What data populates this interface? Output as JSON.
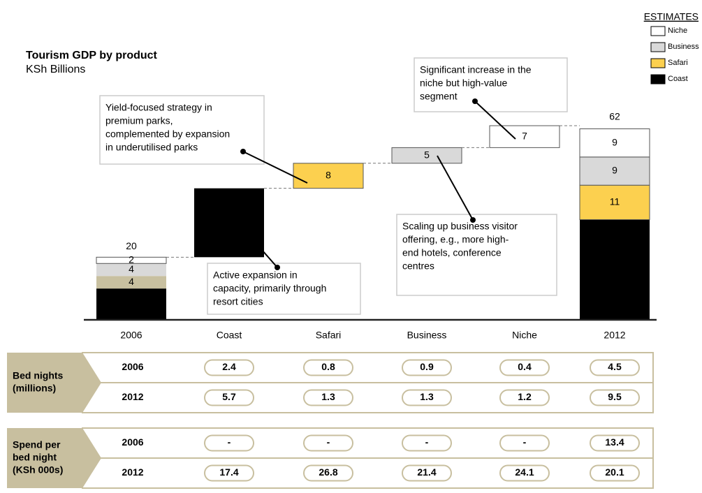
{
  "chart_data": {
    "type": "waterfall",
    "title": "Tourism GDP by product",
    "subtitle": "KSh Billions",
    "legend_title": "ESTIMATES",
    "categories": [
      "2006",
      "Coast",
      "Safari",
      "Business",
      "Niche",
      "2012"
    ],
    "series": [
      {
        "name": "Coast",
        "color": "#000000",
        "start": 10,
        "change": 22,
        "end": 32
      },
      {
        "name": "Safari",
        "color": "#fcd04f",
        "start": 4,
        "change": 8,
        "end": 11
      },
      {
        "name": "Business",
        "color": "#d9d9d9",
        "start": 4,
        "change": 5,
        "end": 9
      },
      {
        "name": "Niche",
        "color": "#ffffff",
        "start": 2,
        "change": 7,
        "end": 9
      }
    ],
    "start_colors": [
      "#000000",
      "#c8c0a0",
      "#d9d9d9",
      "#ffffff"
    ],
    "start_total": 20,
    "end_total": 62,
    "annotations": [
      {
        "lines": [
          "Yield-focused strategy in",
          "premium parks,",
          "complemented by expansion",
          "in underutilised parks"
        ]
      },
      {
        "lines": [
          "Significant increase in the",
          "niche but high-value",
          "segment"
        ]
      },
      {
        "lines": [
          "Scaling up business visitor",
          "offering, e.g., more high-",
          "end hotels, conference",
          "centres"
        ]
      },
      {
        "lines": [
          "Active expansion in",
          "capacity, primarily through",
          "resort cities"
        ]
      }
    ]
  },
  "table": {
    "groups": [
      {
        "label": [
          "Bed nights",
          "(millions)"
        ],
        "rows": [
          {
            "year": "2006",
            "values": [
              2.4,
              0.8,
              0.9,
              0.4,
              4.5
            ]
          },
          {
            "year": "2012",
            "values": [
              5.7,
              1.3,
              1.3,
              1.2,
              9.5
            ]
          }
        ]
      },
      {
        "label": [
          "Spend per",
          "bed night",
          "(KSh 000s)"
        ],
        "rows": [
          {
            "year": "2006",
            "values": [
              "-",
              "-",
              "-",
              "-",
              13.4
            ]
          },
          {
            "year": "2012",
            "values": [
              17.4,
              26.8,
              21.4,
              24.1,
              20.1
            ]
          }
        ]
      }
    ]
  }
}
